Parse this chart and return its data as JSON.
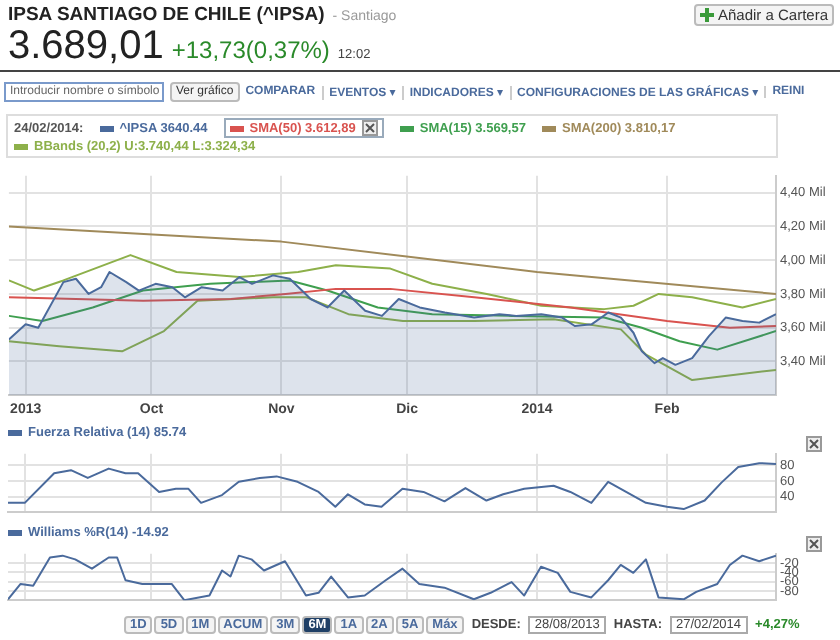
{
  "chart_data": [
    {
      "type": "line",
      "title": "IPSA SANTIAGO DE CHILE (^IPSA)",
      "subtitle": "- Santiago",
      "annotations": [
        "3.689,01",
        "+13,73(0,37%)",
        "12:02",
        "Añadir a Cartera",
        "Introducir nombre o símbolo",
        "Ver gráfico",
        "COMPARAR",
        "EVENTOS ▾",
        "INDICADORES ▾",
        "CONFIGURACIONES DE LAS GRÁFICAS ▾",
        "REINI",
        "24/02/2014:"
      ],
      "xlim": [
        "2013-08-28",
        "2014-02-27"
      ],
      "xticks": [
        {
          "value": "2013-09-01",
          "label": "2013"
        },
        {
          "value": "2013-10-01",
          "label": "Oct"
        },
        {
          "value": "2013-11-01",
          "label": "Nov"
        },
        {
          "value": "2013-12-01",
          "label": "Dic"
        },
        {
          "value": "2014-01-01",
          "label": "2014"
        },
        {
          "value": "2014-02-01",
          "label": "Feb"
        }
      ],
      "ylim": [
        3.2,
        4.5
      ],
      "yticks": [
        {
          "value": 3.4,
          "label": "3,40 Mil"
        },
        {
          "value": 3.6,
          "label": "3,60 Mil"
        },
        {
          "value": 3.8,
          "label": "3,80 Mil"
        },
        {
          "value": 4.0,
          "label": "4,00 Mil"
        },
        {
          "value": 4.2,
          "label": "4,20 Mil"
        },
        {
          "value": 4.4,
          "label": "4,40 Mil"
        }
      ],
      "grid": true,
      "legend": "top left",
      "series": [
        {
          "name": "^IPSA 3640.44",
          "type": "area",
          "color": "#4a6a9c",
          "x": [
            "2013-08-28",
            "2013-09-01",
            "2013-09-04",
            "2013-09-10",
            "2013-09-13",
            "2013-09-16",
            "2013-09-19",
            "2013-09-21",
            "2013-09-25",
            "2013-09-28",
            "2013-10-02",
            "2013-10-06",
            "2013-10-09",
            "2013-10-13",
            "2013-10-18",
            "2013-10-22",
            "2013-10-25",
            "2013-10-30",
            "2013-11-03",
            "2013-11-08",
            "2013-11-12",
            "2013-11-16",
            "2013-11-21",
            "2013-11-25",
            "2013-11-29",
            "2013-12-04",
            "2013-12-10",
            "2013-12-17",
            "2013-12-23",
            "2013-12-27",
            "2014-01-02",
            "2014-01-07",
            "2014-01-10",
            "2014-01-14",
            "2014-01-18",
            "2014-01-21",
            "2014-01-24",
            "2014-01-26",
            "2014-01-29",
            "2014-01-31",
            "2014-02-03",
            "2014-02-07",
            "2014-02-11",
            "2014-02-15",
            "2014-02-19",
            "2014-02-23",
            "2014-02-27"
          ],
          "values": [
            3.53,
            3.62,
            3.6,
            3.87,
            3.89,
            3.8,
            3.84,
            3.93,
            3.87,
            3.82,
            3.86,
            3.84,
            3.78,
            3.84,
            3.82,
            3.9,
            3.86,
            3.91,
            3.89,
            3.77,
            3.72,
            3.82,
            3.7,
            3.67,
            3.77,
            3.72,
            3.69,
            3.66,
            3.68,
            3.67,
            3.68,
            3.66,
            3.61,
            3.62,
            3.69,
            3.66,
            3.57,
            3.46,
            3.39,
            3.42,
            3.38,
            3.42,
            3.55,
            3.66,
            3.64,
            3.63,
            3.68
          ]
        },
        {
          "name": "SMA(50) 3.612,89",
          "color": "#d9534f",
          "x": [
            "2013-08-28",
            "2013-09-29",
            "2013-10-20",
            "2013-11-02",
            "2013-11-14",
            "2013-11-27",
            "2013-12-17",
            "2014-01-09",
            "2014-02-01",
            "2014-02-16",
            "2014-02-27"
          ],
          "values": [
            3.78,
            3.76,
            3.77,
            3.8,
            3.83,
            3.83,
            3.78,
            3.72,
            3.64,
            3.6,
            3.61
          ]
        },
        {
          "name": "SMA(15) 3.569,57",
          "color": "#3f9f4f",
          "x": [
            "2013-08-28",
            "2013-09-05",
            "2013-09-17",
            "2013-09-29",
            "2013-10-15",
            "2013-11-03",
            "2013-11-12",
            "2013-11-24",
            "2013-12-07",
            "2013-12-26",
            "2014-01-17",
            "2014-01-26",
            "2014-02-04",
            "2014-02-13",
            "2014-02-27"
          ],
          "values": [
            3.67,
            3.64,
            3.72,
            3.82,
            3.86,
            3.88,
            3.82,
            3.72,
            3.68,
            3.67,
            3.66,
            3.6,
            3.52,
            3.47,
            3.58
          ]
        },
        {
          "name": "SMA(200) 3.810,17",
          "color": "#a08a5a",
          "x": [
            "2013-08-28",
            "2013-11-01",
            "2014-01-01",
            "2014-02-27"
          ],
          "values": [
            4.2,
            4.11,
            3.93,
            3.8
          ]
        },
        {
          "name": "BBands (20,2) U:3.740,44 L:3.324,34",
          "color": "#8db04a",
          "x": [
            "2013-08-28",
            "2013-09-03",
            "2013-09-10",
            "2013-09-26",
            "2013-10-07",
            "2013-10-22",
            "2013-11-05",
            "2013-11-14",
            "2013-11-27",
            "2013-12-07",
            "2013-12-20",
            "2014-01-02",
            "2014-01-17",
            "2014-01-24",
            "2014-01-30",
            "2014-02-07",
            "2014-02-19",
            "2014-02-27"
          ],
          "values": [
            3.88,
            3.82,
            3.88,
            4.03,
            3.93,
            3.9,
            3.93,
            3.97,
            3.95,
            3.86,
            3.8,
            3.73,
            3.71,
            3.73,
            3.8,
            3.78,
            3.72,
            3.77
          ]
        },
        {
          "color": "#8db04a",
          "x": [
            "2013-08-28",
            "2013-09-09",
            "2013-09-24",
            "2013-10-04",
            "2013-10-12",
            "2013-10-30",
            "2013-11-07",
            "2013-11-17",
            "2013-11-30",
            "2013-12-17",
            "2014-01-05",
            "2014-01-21",
            "2014-01-27",
            "2014-02-07",
            "2014-02-27"
          ],
          "values": [
            3.52,
            3.49,
            3.46,
            3.58,
            3.76,
            3.78,
            3.78,
            3.68,
            3.64,
            3.64,
            3.65,
            3.59,
            3.44,
            3.29,
            3.35
          ]
        }
      ]
    },
    {
      "type": "line",
      "xlim": [
        "2013-08-28",
        "2014-02-27"
      ],
      "xticks": [
        {
          "value": "2013-09-01",
          "label": null
        },
        {
          "value": "2013-10-01",
          "label": null
        },
        {
          "value": "2013-11-01",
          "label": null
        },
        {
          "value": "2013-12-01",
          "label": null
        },
        {
          "value": "2014-01-01",
          "label": null
        },
        {
          "value": "2014-02-01",
          "label": null
        }
      ],
      "ylim": [
        20,
        95
      ],
      "yticks": [
        40,
        60,
        80
      ],
      "grid": true,
      "legend": "top left",
      "tick_labels": "y",
      "series": [
        {
          "name": "Fuerza Relativa (14) 85.74",
          "color": "#4a6a9c",
          "x": [
            "2013-08-28",
            "2013-09-01",
            "2013-09-08",
            "2013-09-12",
            "2013-09-16",
            "2013-09-21",
            "2013-09-25",
            "2013-09-28",
            "2013-10-03",
            "2013-10-07",
            "2013-10-10",
            "2013-10-13",
            "2013-10-18",
            "2013-10-22",
            "2013-10-27",
            "2013-10-31",
            "2013-11-05",
            "2013-11-10",
            "2013-11-14",
            "2013-11-17",
            "2013-11-21",
            "2013-11-25",
            "2013-11-30",
            "2013-12-05",
            "2013-12-10",
            "2013-12-15",
            "2013-12-20",
            "2013-12-24",
            "2013-12-29",
            "2014-01-05",
            "2014-01-09",
            "2014-01-14",
            "2014-01-18",
            "2014-01-21",
            "2014-01-27",
            "2014-02-01",
            "2014-02-05",
            "2014-02-10",
            "2014-02-14",
            "2014-02-18",
            "2014-02-23",
            "2014-02-27"
          ],
          "values": [
            32,
            32,
            70,
            74,
            64,
            76,
            70,
            70,
            46,
            50,
            50,
            32,
            42,
            59,
            64,
            66,
            59,
            46,
            27,
            43,
            30,
            27,
            50,
            46,
            34,
            51,
            35,
            43,
            50,
            54,
            46,
            32,
            59,
            50,
            32,
            27,
            24,
            35,
            58,
            78,
            83,
            82
          ]
        }
      ]
    },
    {
      "type": "line",
      "xlim": [
        "2013-08-28",
        "2014-02-27"
      ],
      "xticks": [
        {
          "value": "2013-09-01",
          "label": null
        },
        {
          "value": "2013-10-01",
          "label": null
        },
        {
          "value": "2013-11-01",
          "label": null
        },
        {
          "value": "2013-12-01",
          "label": null
        },
        {
          "value": "2014-01-01",
          "label": null
        },
        {
          "value": "2014-02-01",
          "label": null
        }
      ],
      "ylim": [
        -100,
        0
      ],
      "yticks": [
        -20,
        -40,
        -60,
        -80
      ],
      "grid": true,
      "legend": "top left",
      "tick_labels": "y",
      "annotations": [
        "1D",
        "5D",
        "1M",
        "ACUM",
        "3M",
        "6M",
        "1A",
        "2A",
        "5A",
        "Máx",
        "DESDE:",
        "28/08/2013",
        "HASTA:",
        "27/02/2014",
        "+4,27%"
      ],
      "series": [
        {
          "name": "Williams %R(14) -14.92",
          "color": "#4a6a9c",
          "x": [
            "2013-08-28",
            "2013-08-31",
            "2013-09-03",
            "2013-09-07",
            "2013-09-10",
            "2013-09-13",
            "2013-09-17",
            "2013-09-21",
            "2013-09-23",
            "2013-09-25",
            "2013-09-29",
            "2013-10-06",
            "2013-10-09",
            "2013-10-15",
            "2013-10-18",
            "2013-10-20",
            "2013-10-22",
            "2013-10-25",
            "2013-10-28",
            "2013-11-02",
            "2013-11-07",
            "2013-11-10",
            "2013-11-13",
            "2013-11-17",
            "2013-11-21",
            "2013-11-26",
            "2013-11-30",
            "2013-12-04",
            "2013-12-10",
            "2013-12-17",
            "2013-12-21",
            "2013-12-26",
            "2013-12-29",
            "2014-01-02",
            "2014-01-06",
            "2014-01-09",
            "2014-01-14",
            "2014-01-18",
            "2014-01-21",
            "2014-01-24",
            "2014-01-27",
            "2014-01-30",
            "2014-02-05",
            "2014-02-08",
            "2014-02-13",
            "2014-02-16",
            "2014-02-19",
            "2014-02-23",
            "2014-02-27"
          ],
          "values": [
            -98,
            -65,
            -69,
            -8,
            -4,
            -12,
            -32,
            -8,
            -8,
            -57,
            -65,
            -65,
            -100,
            -90,
            -36,
            -49,
            -4,
            -12,
            -36,
            -16,
            -90,
            -84,
            -49,
            -94,
            -90,
            -57,
            -32,
            -65,
            -73,
            -98,
            -84,
            -61,
            -90,
            -28,
            -41,
            -82,
            -94,
            -57,
            -24,
            -41,
            -12,
            -94,
            -98,
            -82,
            -65,
            -24,
            -4,
            -16,
            -4
          ]
        }
      ]
    }
  ]
}
